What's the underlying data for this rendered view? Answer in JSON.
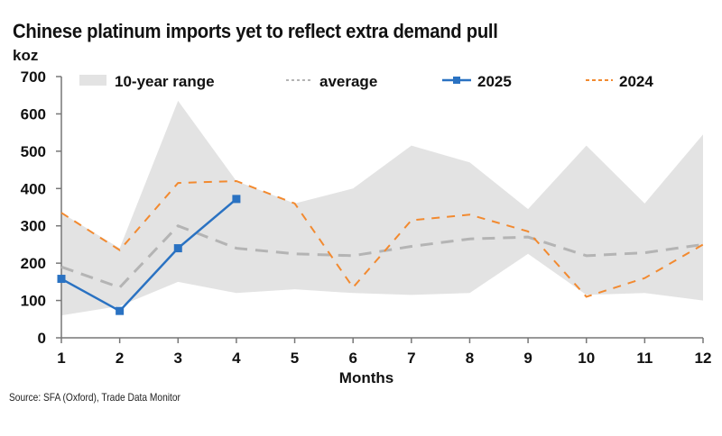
{
  "chart_data": {
    "type": "line",
    "title": "Chinese platinum imports yet to reflect extra demand pull",
    "ylabel": "koz",
    "xlabel": "Months",
    "x": [
      1,
      2,
      3,
      4,
      5,
      6,
      7,
      8,
      9,
      10,
      11,
      12
    ],
    "xtick_labels": [
      "1",
      "2",
      "3",
      "4",
      "5",
      "6",
      "7",
      "8",
      "9",
      "10",
      "11",
      "12"
    ],
    "ylim": [
      0,
      700
    ],
    "yticks": [
      0,
      100,
      200,
      300,
      400,
      500,
      600,
      700
    ],
    "ytick_labels": [
      "0",
      "100",
      "200",
      "300",
      "400",
      "500",
      "600",
      "700"
    ],
    "grid": false,
    "legend_position": "top",
    "range": {
      "name": "10-year range",
      "color": "#e3e3e3",
      "upper": [
        335,
        240,
        635,
        420,
        360,
        400,
        515,
        470,
        345,
        515,
        360,
        545
      ],
      "lower": [
        60,
        85,
        150,
        120,
        130,
        120,
        115,
        120,
        225,
        115,
        120,
        100
      ]
    },
    "series": [
      {
        "name": "average",
        "color": "#b4b4b4",
        "style": "dashed",
        "values": [
          190,
          135,
          300,
          240,
          225,
          220,
          245,
          265,
          270,
          220,
          228,
          250
        ]
      },
      {
        "name": "2024",
        "color": "#f28a30",
        "style": "dashed",
        "values": [
          335,
          235,
          415,
          420,
          360,
          135,
          315,
          330,
          285,
          110,
          160,
          250
        ]
      },
      {
        "name": "2025",
        "color": "#2a72c2",
        "style": "solid-markers",
        "values": [
          158,
          72,
          240,
          372
        ]
      }
    ],
    "legend": [
      "10-year range",
      "average",
      "2025",
      "2024"
    ],
    "source": "Source: SFA (Oxford), Trade Data Monitor"
  }
}
